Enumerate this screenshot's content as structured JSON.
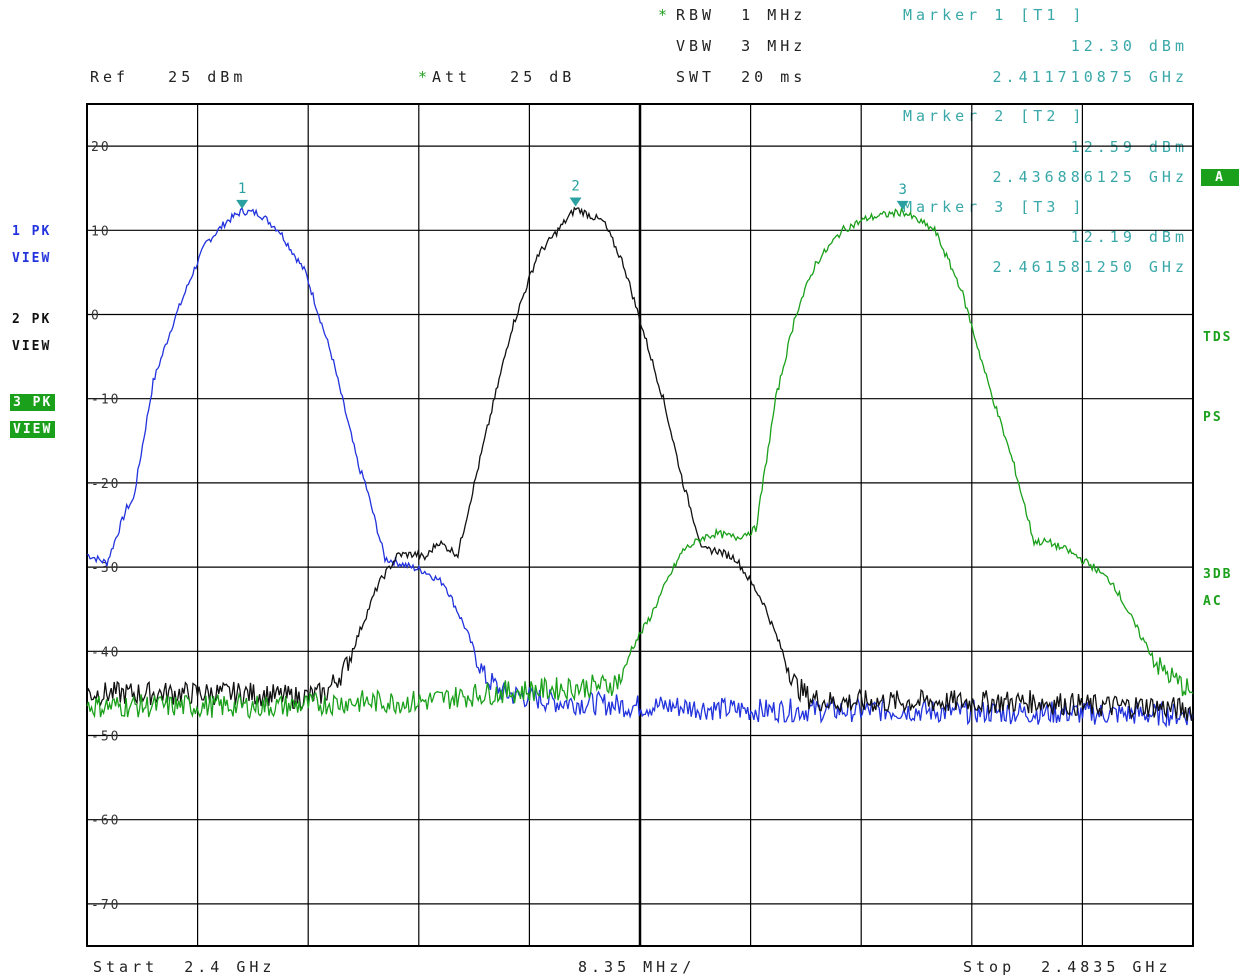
{
  "header": {
    "rbw": "RBW  1 MHz",
    "vbw": "VBW  3 MHz",
    "swt": "SWT  20 ms",
    "ref": "Ref   25 dBm",
    "att": "Att   25 dB",
    "star": "*"
  },
  "markers": [
    {
      "label": "Marker 1 [T1 ]",
      "level": "12.30 dBm",
      "freq": "2.411710875 GHz",
      "num": "1"
    },
    {
      "label": "Marker 2 [T2 ]",
      "level": "12.59 dBm",
      "freq": "2.436886125 GHz",
      "num": "2"
    },
    {
      "label": "Marker 3 [T3 ]",
      "level": "12.19 dBm",
      "freq": "2.461581250 GHz",
      "num": "3"
    }
  ],
  "left_panel": {
    "t1": "1 PK",
    "t1v": "VIEW",
    "t2": "2 PK",
    "t2v": "VIEW",
    "t3": "3 PK",
    "t3v": "VIEW"
  },
  "right_panel": {
    "a": "A",
    "tds": "TDS",
    "ps": "PS",
    "dbac1": "3DB",
    "dbac2": "AC"
  },
  "footer": {
    "start": "Start  2.4 GHz",
    "span": "8.35 MHz/",
    "stop": "Stop  2.4835 GHz"
  },
  "colors": {
    "trace1": "#2233dd",
    "trace2": "#111111",
    "trace3": "#1aa01a",
    "marker": "#2aa0a0",
    "grid": "#000000"
  },
  "chart_data": {
    "type": "line",
    "x_start_ghz": 2.4,
    "x_stop_ghz": 2.4835,
    "xlabel_per_div": "8.35 MHz/",
    "ylim": [
      -75,
      25
    ],
    "yticks": [
      20,
      10,
      0,
      -10,
      -20,
      -30,
      -40,
      -50,
      -60,
      -70
    ],
    "ytick_labels": [
      "20",
      "10",
      "0",
      "-10",
      "-20",
      "-30",
      "-40",
      "-50",
      "-60",
      "-70"
    ],
    "grid": true,
    "series": [
      {
        "name": "1 PK",
        "color": "#2233dd",
        "x": [
          2.4,
          2.4015,
          2.403,
          2.4035,
          2.405,
          2.4065,
          2.408,
          2.409,
          2.4105,
          2.4117,
          2.413,
          2.4145,
          2.4165,
          2.4185,
          2.4205,
          2.421,
          2.4225,
          2.4235,
          2.4245,
          2.4255,
          2.427,
          2.4285,
          2.43,
          2.4315,
          2.4335,
          2.4355,
          2.4385,
          2.441,
          2.444,
          2.447,
          2.45,
          2.453,
          2.456,
          2.459,
          2.462,
          2.465,
          2.468,
          2.471,
          2.474,
          2.477,
          2.48,
          2.4835
        ],
        "y": [
          -28.5,
          -29.5,
          -23,
          -22,
          -8,
          -1,
          5,
          8.5,
          11,
          12.3,
          12,
          10,
          5,
          -5,
          -18,
          -20,
          -29,
          -29.5,
          -30,
          -30.5,
          -32,
          -37,
          -43,
          -45,
          -45.5,
          -46,
          -46.2,
          -46.5,
          -46.5,
          -46.8,
          -47,
          -47,
          -47,
          -47,
          -47,
          -47.2,
          -47.2,
          -47.3,
          -47.3,
          -47.4,
          -47.5,
          -47.5
        ]
      },
      {
        "name": "2 PK",
        "color": "#111111",
        "x": [
          2.4,
          2.404,
          2.408,
          2.412,
          2.416,
          2.418,
          2.4195,
          2.4205,
          2.422,
          2.4235,
          2.425,
          2.4255,
          2.4265,
          2.428,
          2.43,
          2.432,
          2.434,
          2.4369,
          2.439,
          2.4405,
          2.442,
          2.4435,
          2.445,
          2.4465,
          2.4475,
          2.449,
          2.451,
          2.4525,
          2.4535,
          2.4545,
          2.456,
          2.458,
          2.46,
          2.464,
          2.468,
          2.472,
          2.476,
          2.48,
          2.4835
        ],
        "y": [
          -45,
          -45,
          -45,
          -45,
          -45.5,
          -45,
          -42,
          -38,
          -32,
          -28.5,
          -28.5,
          -29,
          -27,
          -28.5,
          -15,
          -2,
          7,
          12.6,
          11,
          6,
          -2,
          -10,
          -20,
          -28,
          -28,
          -29,
          -34,
          -40,
          -44,
          -45.5,
          -46,
          -46,
          -46,
          -46,
          -46,
          -46,
          -46.5,
          -46.5,
          -47
        ]
      },
      {
        "name": "3 PK",
        "color": "#1aa01a",
        "x": [
          2.4,
          2.405,
          2.41,
          2.415,
          2.42,
          2.425,
          2.43,
          2.435,
          2.4395,
          2.4405,
          2.441,
          2.4425,
          2.444,
          2.445,
          2.4465,
          2.4475,
          2.449,
          2.4505,
          2.452,
          2.4535,
          2.455,
          2.457,
          2.459,
          2.4616,
          2.464,
          2.466,
          2.468,
          2.47,
          2.4715,
          2.4725,
          2.474,
          2.476,
          2.4775,
          2.4795,
          2.481,
          2.4835
        ],
        "y": [
          -46.5,
          -46.5,
          -46.5,
          -46.5,
          -46,
          -46,
          -45,
          -44.5,
          -44,
          -43,
          -40,
          -36,
          -31,
          -28,
          -26.5,
          -26,
          -26.5,
          -25.5,
          -10,
          0,
          6,
          10,
          11.5,
          12.2,
          10,
          3,
          -8,
          -18,
          -27,
          -27,
          -28,
          -30,
          -32,
          -38,
          -42,
          -45
        ]
      }
    ],
    "markers": [
      {
        "trace": 1,
        "x": 2.411710875,
        "y": 12.3
      },
      {
        "trace": 2,
        "x": 2.436886125,
        "y": 12.59
      },
      {
        "trace": 3,
        "x": 2.46158125,
        "y": 12.19
      }
    ]
  }
}
